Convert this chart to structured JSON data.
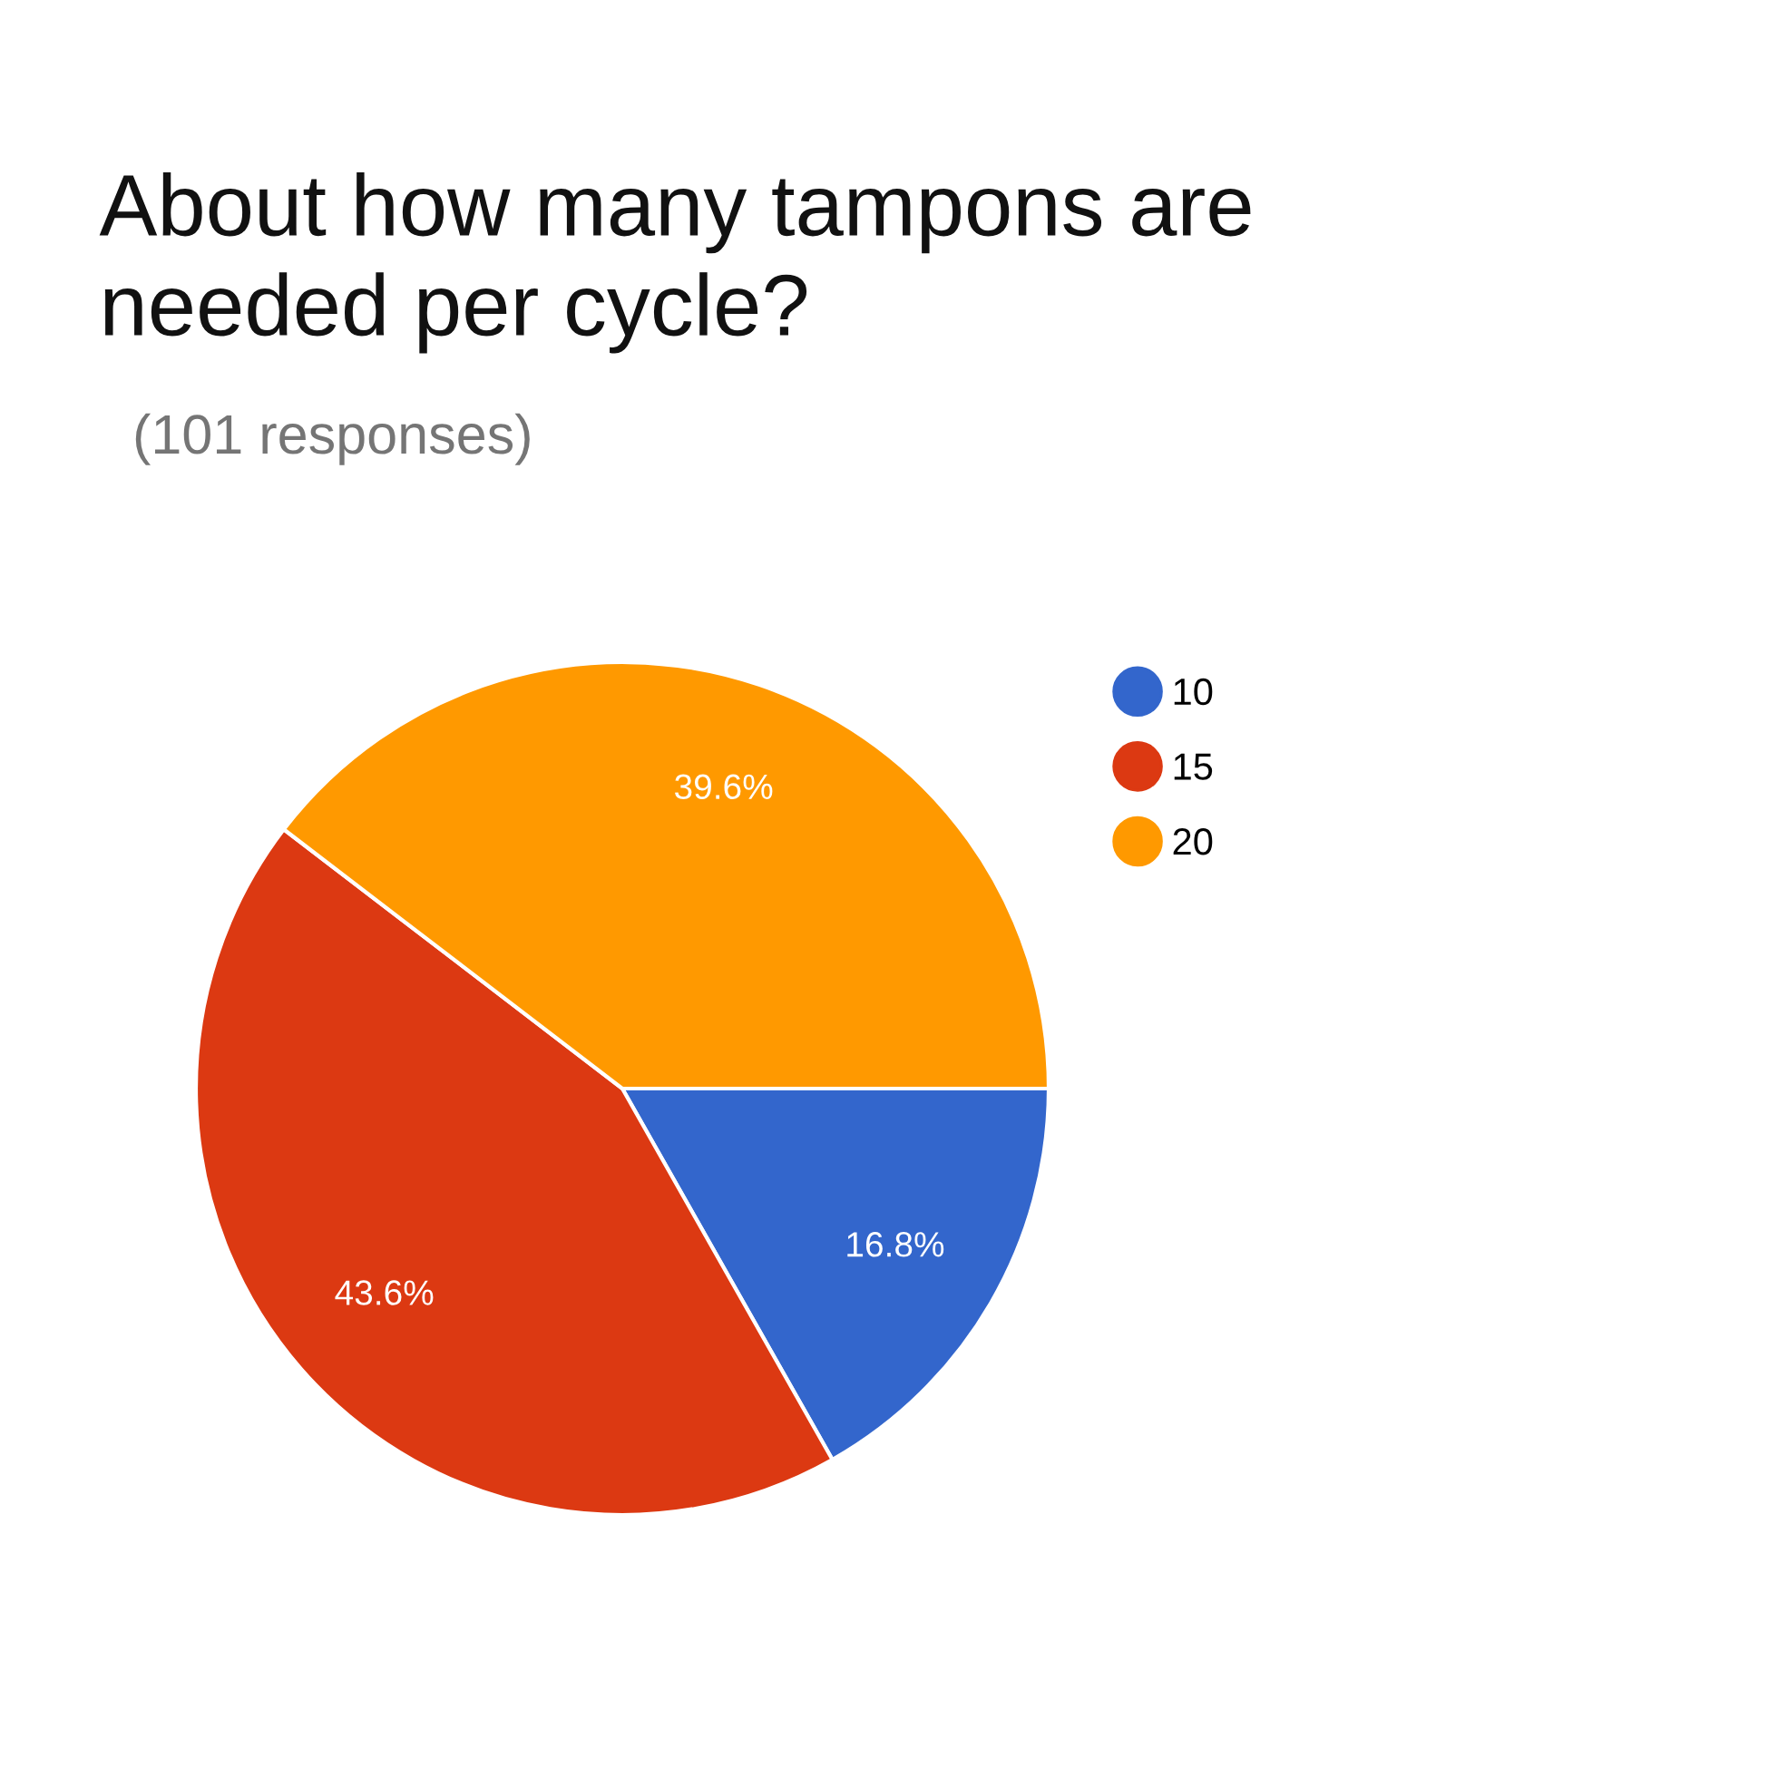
{
  "chart_data": {
    "type": "pie",
    "title": "About how many tampons are needed per cycle?",
    "subtitle": "(101 responses)",
    "categories": [
      "10",
      "15",
      "20"
    ],
    "values": [
      16.8,
      43.6,
      39.6
    ],
    "colors": [
      "#3366cc",
      "#dc3912",
      "#ff9900"
    ],
    "value_labels": [
      "16.8%",
      "43.6%",
      "39.6%"
    ],
    "legend": "top right",
    "marker": "circle"
  }
}
